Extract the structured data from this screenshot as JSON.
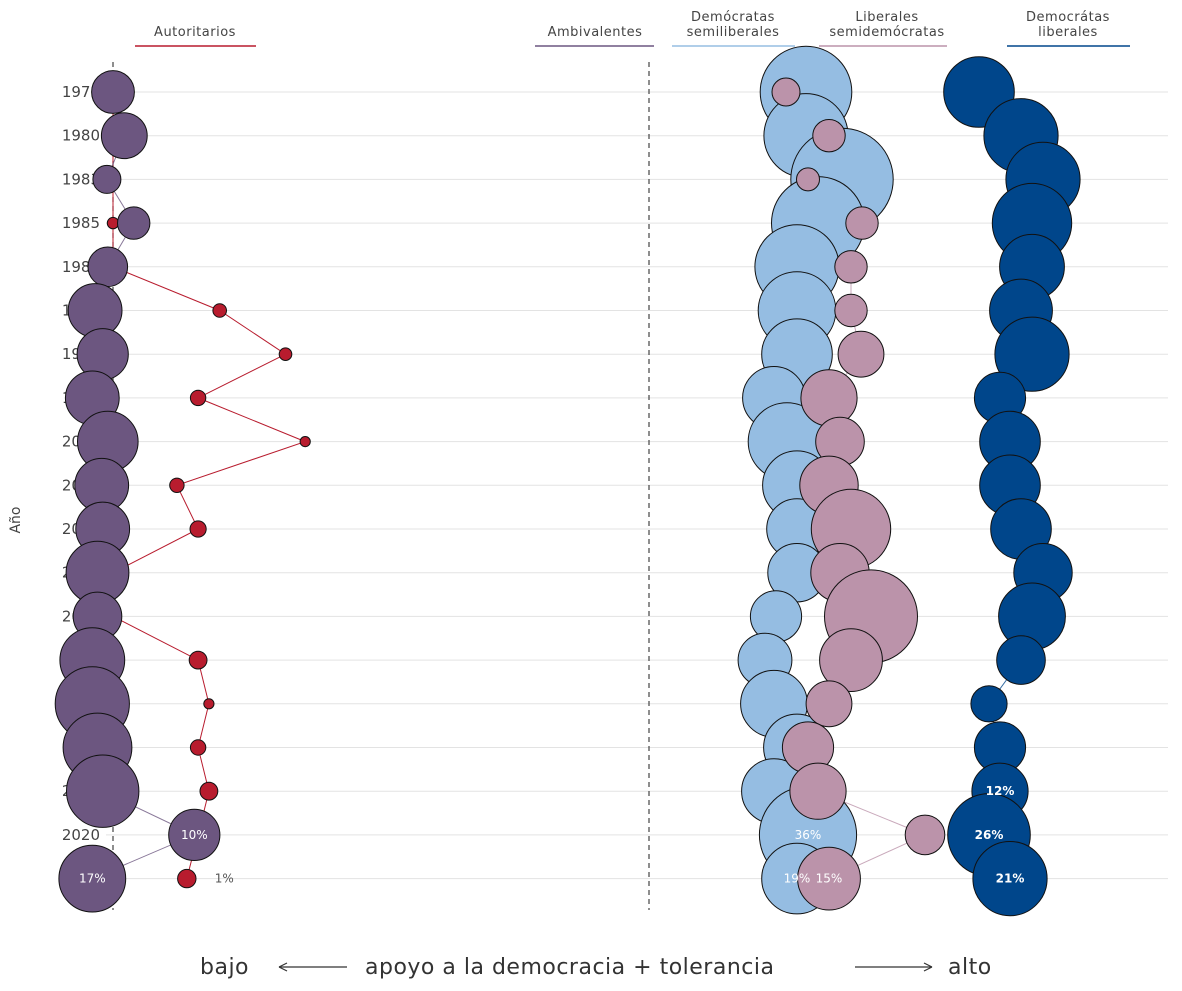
{
  "chart_data": {
    "type": "scatter",
    "ylabel": "Año",
    "years": [
      "1978",
      "1980",
      "1983",
      "1985",
      "1987",
      "1990",
      "1995",
      "1999",
      "2002",
      "2004",
      "2006",
      "2008",
      "2010",
      "2012",
      "2014",
      "2016",
      "2018",
      "2020",
      "2021"
    ],
    "groups": [
      {
        "name": "Autoritarios",
        "color": "#b81c2e",
        "values": [
          0.5,
          0.5,
          0.5,
          0.5,
          0.5,
          0.7,
          0.6,
          0.9,
          0.4,
          0.8,
          1.0,
          0.6,
          0.6,
          1.2,
          0.4,
          0.9,
          1.2,
          0.7,
          1.3
        ],
        "position": [
          0.0,
          0.0,
          0.0,
          0.0,
          0.0,
          0.227,
          0.367,
          0.181,
          0.409,
          0.136,
          0.181,
          0.0,
          0.0,
          0.181,
          0.204,
          0.181,
          0.204,
          0.181,
          0.157
        ]
      },
      {
        "name": "Ambivalentes",
        "color": "#6c5680",
        "values": [
          7,
          8,
          3,
          4,
          6,
          11,
          10,
          11,
          14,
          11,
          11,
          15,
          9,
          16,
          21,
          18,
          20,
          10,
          17
        ],
        "position": [
          0.0,
          0.024,
          -0.013,
          0.044,
          -0.011,
          -0.038,
          -0.022,
          -0.044,
          -0.011,
          -0.024,
          -0.022,
          -0.033,
          -0.033,
          -0.044,
          -0.044,
          -0.033,
          -0.022,
          0.173,
          -0.044
        ]
      },
      {
        "name": "Demócratas semiliberales",
        "color": "#95bde2",
        "values": [
          32,
          27,
          40,
          33,
          27,
          23,
          19,
          15,
          23,
          18,
          14,
          13,
          10,
          11,
          17,
          17,
          16,
          36,
          19
        ]
      },
      {
        "name": "Liberales semidemócratas",
        "color": "#bb93aa",
        "values": [
          3,
          4,
          2,
          4,
          4,
          4,
          8,
          12,
          9,
          13,
          24,
          13,
          33,
          15,
          8,
          10,
          12,
          6,
          15
        ]
      },
      {
        "name": "Democrátas liberales",
        "color": "#00468b",
        "values": [
          19,
          21,
          21,
          24,
          16,
          15,
          21,
          10,
          14,
          14,
          14,
          13,
          17,
          9,
          5,
          10,
          12,
          26,
          21
        ]
      }
    ],
    "labels": {
      "Autoritarios": {
        "2021": "1%"
      },
      "Ambivalentes": {
        "2020": "10%",
        "2021": "17%"
      },
      "Demócratas semiliberales": {
        "2020": "36%",
        "2021": "19%"
      },
      "Liberales semidemócratas": {
        "2021": "15%"
      },
      "Democrátas liberales": {
        "2018": "12%",
        "2020": "26%",
        "2021": "21%"
      }
    },
    "x_annotation": {
      "low": "bajo",
      "middle": "apoyo a la democracia + tolerancia",
      "high": "alto"
    },
    "grid": true,
    "legend": "top"
  }
}
